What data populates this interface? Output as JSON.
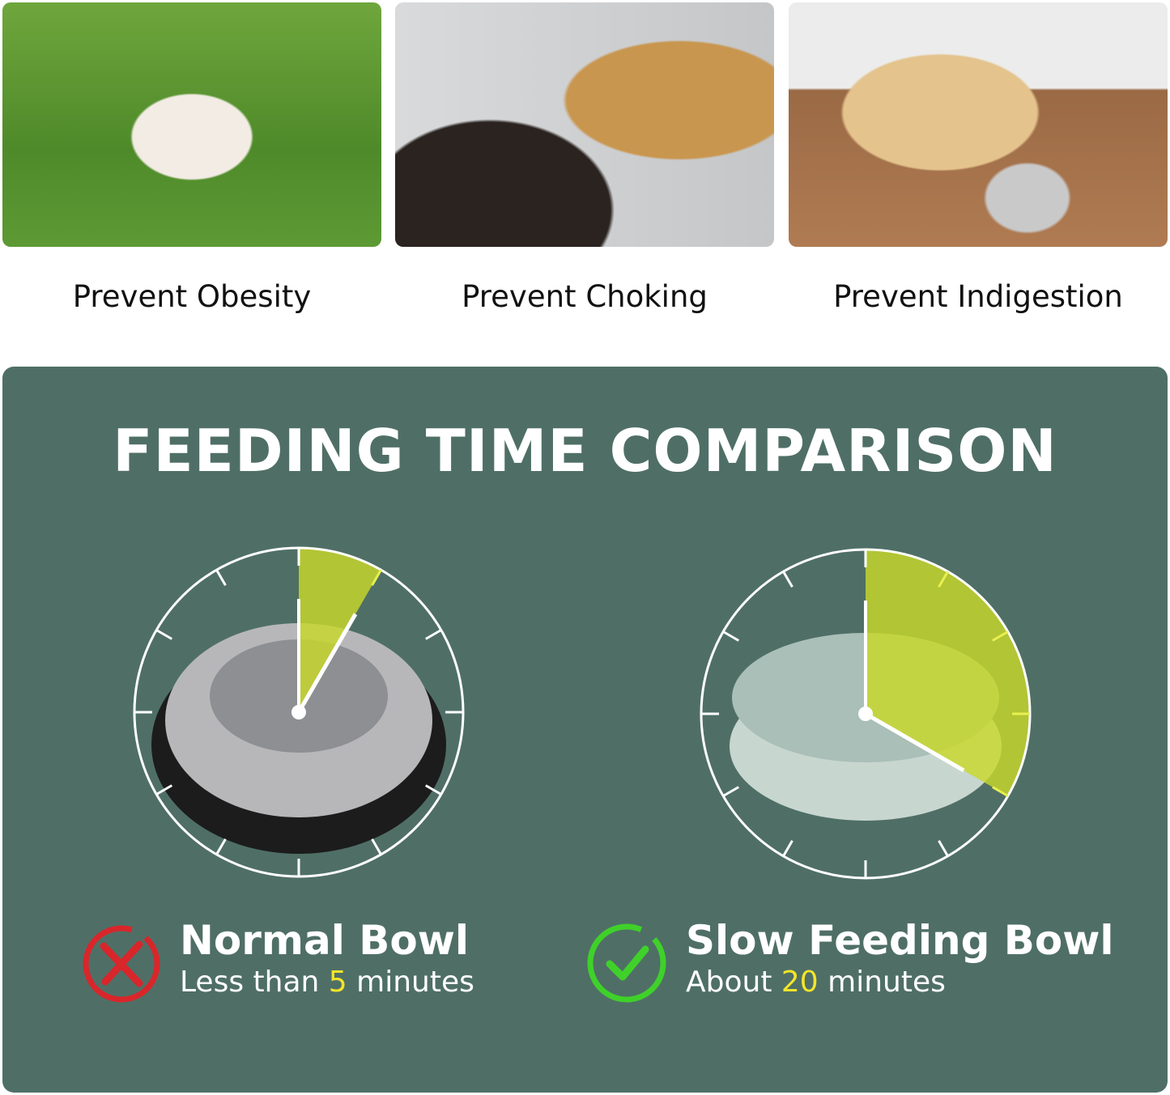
{
  "benefits": [
    {
      "label": "Prevent Obesity"
    },
    {
      "label": "Prevent Choking"
    },
    {
      "label": "Prevent Indigestion"
    }
  ],
  "comparison": {
    "title": "FEEDING TIME COMPARISON",
    "normal": {
      "name": "Normal Bowl",
      "prefix": "Less than ",
      "value": "5",
      "suffix": " minutes",
      "status_icon": "x-circle-icon",
      "status_color": "#d8262b"
    },
    "slow": {
      "name": "Slow Feeding Bowl",
      "prefix": "About ",
      "value": "20",
      "suffix": " minutes",
      "status_icon": "check-circle-icon",
      "status_color": "#3fd12a"
    }
  },
  "colors": {
    "panel": "#4f6f66",
    "highlight": "#f4e52a",
    "sector": "#b4c535"
  }
}
